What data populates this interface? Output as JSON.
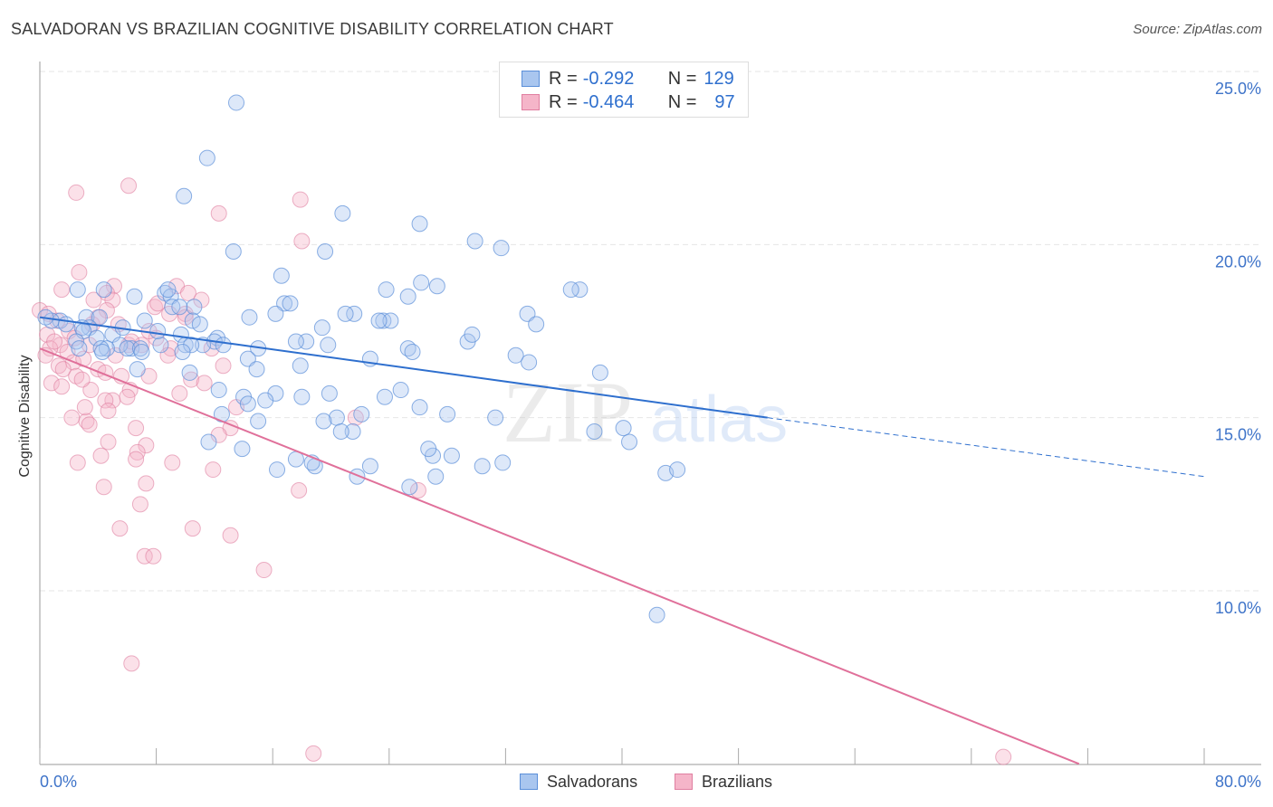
{
  "title": "SALVADORAN VS BRAZILIAN COGNITIVE DISABILITY CORRELATION CHART",
  "source_prefix": "Source: ",
  "source_name": "ZipAtlas.com",
  "watermark": {
    "zip": "ZIP",
    "atlas": "atlas"
  },
  "legend": {
    "rows": [
      {
        "r_label": "R =",
        "r_value": "-0.292",
        "n_label": "N =",
        "n_value": "129"
      },
      {
        "r_label": "R =",
        "r_value": "-0.464",
        "n_label": "N =",
        "n_value": "97"
      }
    ]
  },
  "bottom_legend": [
    "Salvadorans",
    "Brazilians"
  ],
  "colors": {
    "salvadoran_fill": "#a9c6ef",
    "salvadoran_stroke": "#5b8fd9",
    "salvadoran_line": "#2e6fce",
    "brazilian_fill": "#f5b5c9",
    "brazilian_stroke": "#e07ea0",
    "brazilian_line": "#e0709a",
    "tick_text": "#3f74c9",
    "grid": "#e6e6e6"
  },
  "chart_data": {
    "type": "scatter",
    "title": "SALVADORAN VS BRAZILIAN COGNITIVE DISABILITY CORRELATION CHART",
    "xlabel": "",
    "ylabel": "Cognitive Disability",
    "xlim": [
      0,
      80
    ],
    "ylim": [
      5,
      26
    ],
    "x_tick_labels": [
      "0.0%",
      "80.0%"
    ],
    "y_ticks": [
      10,
      15,
      20,
      25
    ],
    "y_tick_labels": [
      "10.0%",
      "15.0%",
      "20.0%",
      "25.0%"
    ],
    "grid": true,
    "legend_position": "top-center",
    "series": [
      {
        "name": "Salvadorans",
        "R": -0.292,
        "N": 129,
        "trend": {
          "x_start": 0,
          "y_start": 17.9,
          "x_solid_end": 50,
          "y_solid_end": 15.0,
          "x_end": 80,
          "y_end": 13.3
        },
        "points": [
          [
            13.5,
            24.1
          ],
          [
            11.5,
            22.5
          ],
          [
            9.9,
            21.4
          ],
          [
            20.8,
            20.9
          ],
          [
            26.1,
            20.6
          ],
          [
            29.9,
            20.1
          ],
          [
            31.7,
            19.9
          ],
          [
            19.6,
            19.8
          ],
          [
            13.3,
            19.8
          ],
          [
            16.6,
            19.1
          ],
          [
            26.2,
            18.9
          ],
          [
            27.3,
            18.8
          ],
          [
            23.8,
            18.7
          ],
          [
            37.1,
            18.7
          ],
          [
            4.4,
            18.7
          ],
          [
            2.6,
            18.7
          ],
          [
            25.3,
            18.5
          ],
          [
            6.5,
            18.5
          ],
          [
            8.6,
            18.6
          ],
          [
            9.0,
            18.5
          ],
          [
            8.8,
            18.7
          ],
          [
            10.6,
            18.2
          ],
          [
            16.8,
            18.3
          ],
          [
            9.1,
            18.2
          ],
          [
            17.2,
            18.3
          ],
          [
            16.2,
            18.0
          ],
          [
            21.6,
            18.0
          ],
          [
            33.5,
            18.0
          ],
          [
            21.0,
            18.0
          ],
          [
            14.4,
            17.9
          ],
          [
            7.2,
            17.8
          ],
          [
            23.6,
            17.8
          ],
          [
            3.2,
            17.9
          ],
          [
            1.4,
            17.8
          ],
          [
            0.8,
            17.8
          ],
          [
            4.1,
            17.9
          ],
          [
            10.5,
            17.8
          ],
          [
            24.1,
            17.8
          ],
          [
            23.3,
            17.8
          ],
          [
            19.4,
            17.6
          ],
          [
            1.8,
            17.7
          ],
          [
            0.4,
            17.9
          ],
          [
            3.4,
            17.6
          ],
          [
            2.9,
            17.6
          ],
          [
            12.2,
            17.3
          ],
          [
            9.7,
            17.4
          ],
          [
            15.0,
            17.0
          ],
          [
            12.0,
            17.2
          ],
          [
            18.3,
            17.2
          ],
          [
            17.6,
            17.2
          ],
          [
            29.4,
            17.2
          ],
          [
            3.0,
            17.5
          ],
          [
            5.0,
            17.4
          ],
          [
            3.9,
            17.3
          ],
          [
            2.5,
            17.2
          ],
          [
            6.3,
            17.0
          ],
          [
            5.5,
            17.1
          ],
          [
            8.3,
            17.1
          ],
          [
            4.6,
            17.0
          ],
          [
            10.0,
            17.1
          ],
          [
            12.6,
            17.1
          ],
          [
            11.2,
            17.1
          ],
          [
            6.0,
            17.0
          ],
          [
            10.4,
            17.1
          ],
          [
            9.8,
            16.9
          ],
          [
            6.9,
            17.0
          ],
          [
            4.2,
            17.0
          ],
          [
            7.0,
            16.9
          ],
          [
            2.7,
            17.0
          ],
          [
            4.3,
            16.9
          ],
          [
            19.8,
            17.1
          ],
          [
            25.3,
            17.0
          ],
          [
            25.6,
            16.9
          ],
          [
            14.3,
            16.7
          ],
          [
            22.7,
            16.7
          ],
          [
            17.9,
            16.5
          ],
          [
            6.7,
            16.4
          ],
          [
            33.6,
            16.6
          ],
          [
            38.5,
            16.3
          ],
          [
            10.3,
            16.3
          ],
          [
            12.3,
            15.8
          ],
          [
            14.0,
            15.6
          ],
          [
            18.0,
            15.6
          ],
          [
            19.9,
            15.7
          ],
          [
            16.2,
            15.7
          ],
          [
            24.8,
            15.8
          ],
          [
            15.5,
            15.5
          ],
          [
            14.3,
            15.4
          ],
          [
            12.5,
            15.1
          ],
          [
            20.4,
            15.0
          ],
          [
            22.1,
            15.1
          ],
          [
            19.5,
            14.9
          ],
          [
            15.0,
            14.9
          ],
          [
            21.5,
            14.6
          ],
          [
            20.7,
            14.6
          ],
          [
            28.0,
            15.1
          ],
          [
            11.6,
            14.3
          ],
          [
            13.9,
            14.1
          ],
          [
            17.6,
            13.8
          ],
          [
            27.0,
            13.9
          ],
          [
            28.3,
            13.9
          ],
          [
            26.7,
            14.1
          ],
          [
            22.7,
            13.6
          ],
          [
            16.3,
            13.5
          ],
          [
            18.9,
            13.6
          ],
          [
            18.7,
            13.7
          ],
          [
            21.8,
            13.3
          ],
          [
            27.2,
            13.3
          ],
          [
            25.4,
            13.0
          ],
          [
            30.4,
            13.6
          ],
          [
            31.8,
            13.7
          ],
          [
            40.1,
            14.7
          ],
          [
            40.5,
            14.3
          ],
          [
            43.0,
            13.4
          ],
          [
            43.8,
            13.5
          ],
          [
            38.1,
            14.6
          ],
          [
            9.6,
            18.2
          ],
          [
            11.0,
            17.7
          ],
          [
            14.9,
            16.4
          ],
          [
            32.7,
            16.8
          ],
          [
            42.4,
            9.3
          ],
          [
            36.5,
            18.7
          ],
          [
            34.1,
            17.7
          ],
          [
            29.7,
            17.4
          ],
          [
            23.7,
            15.6
          ],
          [
            26.1,
            15.3
          ],
          [
            31.3,
            15.0
          ],
          [
            8.1,
            17.5
          ],
          [
            5.7,
            17.6
          ]
        ]
      },
      {
        "name": "Brazilians",
        "R": -0.464,
        "N": 97,
        "trend": {
          "x_start": 0,
          "y_start": 17.0,
          "x_end": 71.4,
          "y_end": 5.0
        },
        "points": [
          [
            2.5,
            21.5
          ],
          [
            6.1,
            21.7
          ],
          [
            12.3,
            20.9
          ],
          [
            17.9,
            21.3
          ],
          [
            18.0,
            20.1
          ],
          [
            2.7,
            19.2
          ],
          [
            5.1,
            18.8
          ],
          [
            4.6,
            18.6
          ],
          [
            1.5,
            18.7
          ],
          [
            9.4,
            18.8
          ],
          [
            10.2,
            18.6
          ],
          [
            11.1,
            18.4
          ],
          [
            5.0,
            18.4
          ],
          [
            3.7,
            18.4
          ],
          [
            0.0,
            18.1
          ],
          [
            7.9,
            18.2
          ],
          [
            8.9,
            18.0
          ],
          [
            10.0,
            18.0
          ],
          [
            4.6,
            18.1
          ],
          [
            0.6,
            18.0
          ],
          [
            1.2,
            17.8
          ],
          [
            3.6,
            17.7
          ],
          [
            5.4,
            17.7
          ],
          [
            0.5,
            17.4
          ],
          [
            2.0,
            17.5
          ],
          [
            8.0,
            17.3
          ],
          [
            1.4,
            17.1
          ],
          [
            0.7,
            17.0
          ],
          [
            6.1,
            17.1
          ],
          [
            7.0,
            17.1
          ],
          [
            3.4,
            17.1
          ],
          [
            9.0,
            17.0
          ],
          [
            1.9,
            16.9
          ],
          [
            0.4,
            16.8
          ],
          [
            2.3,
            16.6
          ],
          [
            3.0,
            16.7
          ],
          [
            1.3,
            16.5
          ],
          [
            1.6,
            16.4
          ],
          [
            4.0,
            16.4
          ],
          [
            4.5,
            16.3
          ],
          [
            2.5,
            16.2
          ],
          [
            5.6,
            16.2
          ],
          [
            7.5,
            16.2
          ],
          [
            10.4,
            16.1
          ],
          [
            0.8,
            16.0
          ],
          [
            1.5,
            15.9
          ],
          [
            3.5,
            15.8
          ],
          [
            6.2,
            15.8
          ],
          [
            5.0,
            15.5
          ],
          [
            4.5,
            15.5
          ],
          [
            6.0,
            15.6
          ],
          [
            12.6,
            16.5
          ],
          [
            11.8,
            17.0
          ],
          [
            4.7,
            15.2
          ],
          [
            3.2,
            14.9
          ],
          [
            2.2,
            15.0
          ],
          [
            3.4,
            14.8
          ],
          [
            6.6,
            14.7
          ],
          [
            13.1,
            14.7
          ],
          [
            12.3,
            14.5
          ],
          [
            4.7,
            14.3
          ],
          [
            7.3,
            14.2
          ],
          [
            6.7,
            14.0
          ],
          [
            4.2,
            13.9
          ],
          [
            2.6,
            13.7
          ],
          [
            6.6,
            13.8
          ],
          [
            9.1,
            13.7
          ],
          [
            11.9,
            13.5
          ],
          [
            7.3,
            13.1
          ],
          [
            4.4,
            13.0
          ],
          [
            17.8,
            12.9
          ],
          [
            26.0,
            12.9
          ],
          [
            6.9,
            12.5
          ],
          [
            5.5,
            11.8
          ],
          [
            10.5,
            11.8
          ],
          [
            13.1,
            11.6
          ],
          [
            7.2,
            11.0
          ],
          [
            7.8,
            11.0
          ],
          [
            15.4,
            10.6
          ],
          [
            6.3,
            7.9
          ],
          [
            18.8,
            5.3
          ],
          [
            66.2,
            5.2
          ],
          [
            21.7,
            15.0
          ],
          [
            8.1,
            18.3
          ],
          [
            10.0,
            17.9
          ],
          [
            7.5,
            17.5
          ],
          [
            2.9,
            16.1
          ],
          [
            1.0,
            17.2
          ],
          [
            11.3,
            16.0
          ],
          [
            9.6,
            15.7
          ],
          [
            13.5,
            15.3
          ],
          [
            4.0,
            17.9
          ],
          [
            6.3,
            17.2
          ],
          [
            2.4,
            17.3
          ],
          [
            8.8,
            16.8
          ],
          [
            5.2,
            16.8
          ],
          [
            3.1,
            15.3
          ]
        ]
      }
    ]
  }
}
